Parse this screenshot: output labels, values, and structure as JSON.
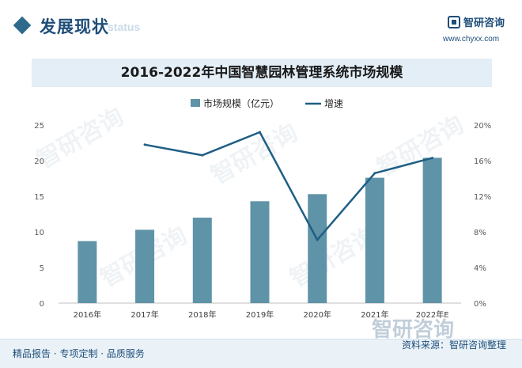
{
  "header": {
    "section_title": "发展现状",
    "section_subtitle": "status",
    "logo_name": "智研咨询",
    "logo_url": "www.chyxx.com"
  },
  "watermark_text": "智研咨询",
  "chart_data": {
    "type": "bar",
    "title": "2016-2022年中国智慧园林管理系统市场规模",
    "categories": [
      "2016年",
      "2017年",
      "2018年",
      "2019年",
      "2020年",
      "2021年",
      "2022年E"
    ],
    "series": [
      {
        "name": "市场规模（亿元）",
        "type": "bar",
        "axis": "left",
        "color": "#5f93a8",
        "values": [
          8.7,
          10.3,
          12.0,
          14.3,
          15.3,
          17.6,
          20.4
        ]
      },
      {
        "name": "增速",
        "type": "line",
        "axis": "right",
        "color": "#1f5f85",
        "values": [
          null,
          17.8,
          16.6,
          19.2,
          7.1,
          14.6,
          16.3
        ]
      }
    ],
    "ylim_left": [
      0,
      25
    ],
    "yticks_left": [
      "0",
      "5",
      "10",
      "15",
      "20",
      "25"
    ],
    "ylim_right": [
      0,
      20
    ],
    "yticks_right": [
      "0%",
      "4%",
      "8%",
      "12%",
      "16%",
      "20%"
    ],
    "grid": false,
    "legend_position": "top-center"
  },
  "footer": {
    "left_text": "精品报告 · 专项定制 · 品质服务",
    "source_text": "资料来源：智研咨询整理"
  }
}
